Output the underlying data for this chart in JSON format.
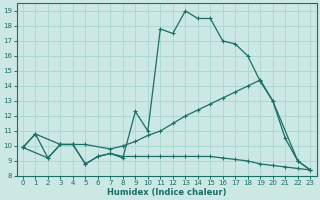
{
  "xlabel": "Humidex (Indice chaleur)",
  "bg_color": "#cce8e4",
  "grid_color": "#b0d8d2",
  "line_color": "#1a6e64",
  "xlim": [
    -0.5,
    23.5
  ],
  "ylim": [
    8,
    19.5
  ],
  "xticks": [
    0,
    1,
    2,
    3,
    4,
    5,
    6,
    7,
    8,
    9,
    10,
    11,
    12,
    13,
    14,
    15,
    16,
    17,
    18,
    19,
    20,
    21,
    22,
    23
  ],
  "yticks": [
    8,
    9,
    10,
    11,
    12,
    13,
    14,
    15,
    16,
    17,
    18,
    19
  ],
  "line1_x": [
    0,
    1,
    2,
    3,
    4,
    5,
    6,
    7,
    8,
    9,
    10,
    11,
    12,
    13,
    14,
    15,
    16,
    17,
    18,
    19,
    20,
    21,
    22,
    23
  ],
  "line1_y": [
    9.9,
    10.8,
    9.2,
    10.1,
    10.1,
    8.8,
    9.3,
    9.5,
    9.2,
    12.3,
    11.0,
    17.8,
    17.5,
    19.0,
    18.5,
    18.5,
    17.0,
    16.8,
    16.0,
    14.3,
    13.0,
    10.5,
    9.0,
    8.4
  ],
  "line2_x": [
    0,
    1,
    3,
    4,
    5,
    7,
    8,
    9,
    10,
    11,
    12,
    13,
    14,
    15,
    16,
    17,
    18,
    19,
    20,
    22,
    23
  ],
  "line2_y": [
    9.9,
    10.8,
    10.1,
    10.1,
    10.1,
    9.8,
    10.0,
    10.3,
    10.7,
    11.0,
    11.5,
    12.0,
    12.4,
    12.8,
    13.2,
    13.6,
    14.0,
    14.4,
    13.0,
    9.0,
    8.4
  ],
  "line3_x": [
    0,
    2,
    3,
    4,
    5,
    6,
    7,
    8,
    9,
    10,
    11,
    12,
    13,
    14,
    15,
    16,
    17,
    18,
    19,
    20,
    21,
    22,
    23
  ],
  "line3_y": [
    9.9,
    9.2,
    10.1,
    10.1,
    8.8,
    9.3,
    9.5,
    9.3,
    9.3,
    9.3,
    9.3,
    9.3,
    9.3,
    9.3,
    9.3,
    9.2,
    9.1,
    9.0,
    8.8,
    8.7,
    8.6,
    8.5,
    8.4
  ]
}
